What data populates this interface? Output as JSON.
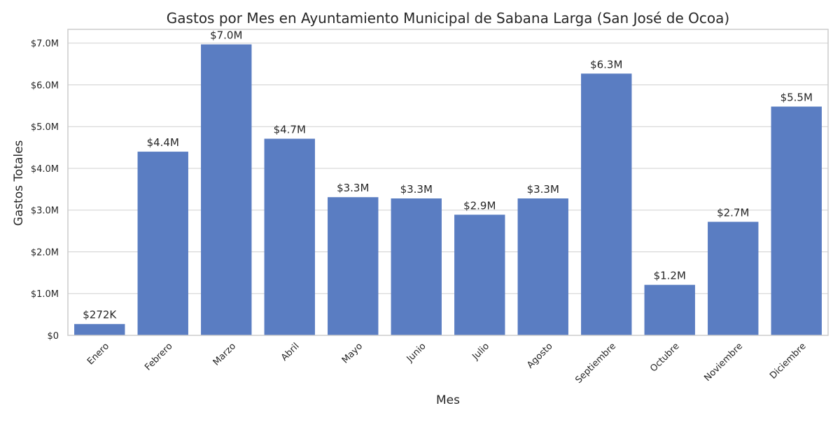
{
  "chart_data": {
    "type": "bar",
    "title": "Gastos por Mes en Ayuntamiento Municipal de Sabana Larga (San José de Ocoa)",
    "xlabel": "Mes",
    "ylabel": "Gastos Totales",
    "categories": [
      "Enero",
      "Febrero",
      "Marzo",
      "Abril",
      "Mayo",
      "Junio",
      "Julio",
      "Agosto",
      "Septiembre",
      "Octubre",
      "Noviembre",
      "Diciembre"
    ],
    "values": [
      272000,
      4400000,
      6970000,
      4710000,
      3310000,
      3280000,
      2890000,
      3280000,
      6270000,
      1210000,
      2720000,
      5480000
    ],
    "data_labels": [
      "$272K",
      "$4.4M",
      "$7.0M",
      "$4.7M",
      "$3.3M",
      "$3.3M",
      "$2.9M",
      "$3.3M",
      "$6.3M",
      "$1.2M",
      "$2.7M",
      "$5.5M"
    ],
    "ylim": [
      0,
      7330000
    ],
    "yticks": [
      0,
      1000000,
      2000000,
      3000000,
      4000000,
      5000000,
      6000000,
      7000000
    ],
    "ytick_labels": [
      "$0",
      "$1.0M",
      "$2.0M",
      "$3.0M",
      "$4.0M",
      "$5.0M",
      "$6.0M",
      "$7.0M"
    ],
    "grid": "horizontal",
    "bar_color": "#5a7dc2",
    "grid_color": "#d0d0d0",
    "frame_color": "#cccccc"
  }
}
